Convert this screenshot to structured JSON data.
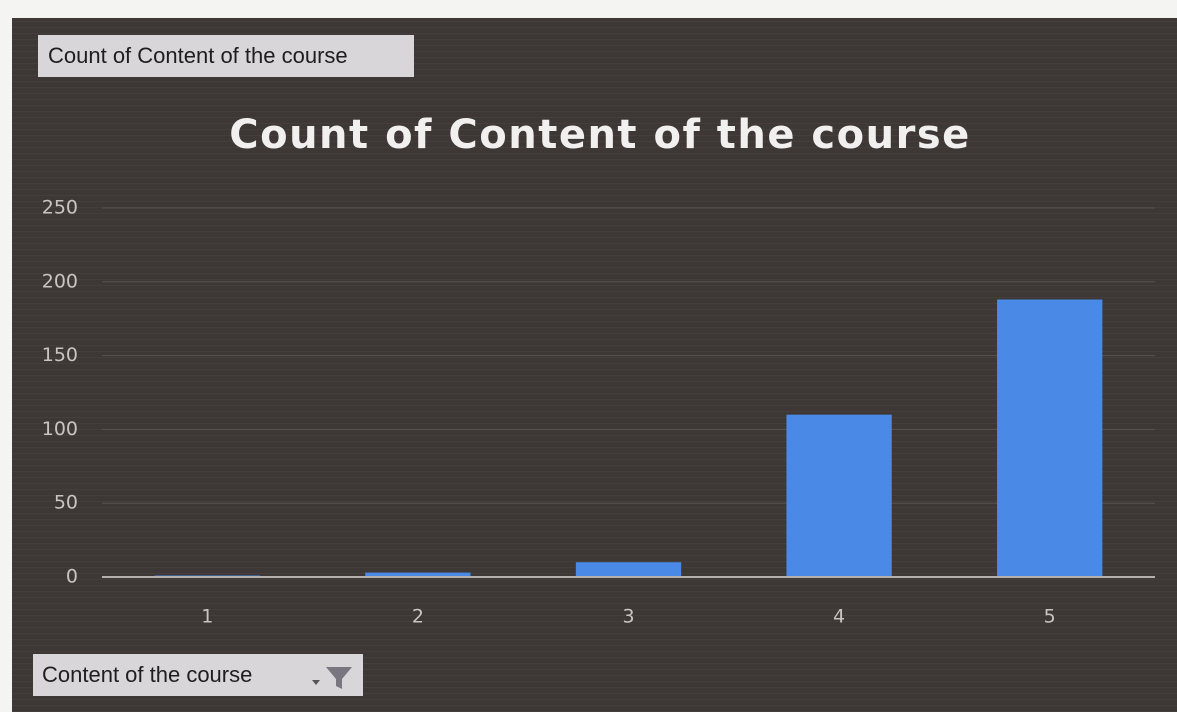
{
  "chart_data": {
    "type": "bar",
    "title": "Count of Content of the course",
    "value_field_button": "Count of Content of the course",
    "axis_field_button": "Content of the course",
    "categories": [
      "1",
      "2",
      "3",
      "4",
      "5"
    ],
    "values": [
      1,
      3,
      10,
      110,
      188
    ],
    "color": "#4a8ae6",
    "ylim": [
      0,
      250
    ],
    "yticks": [
      0,
      50,
      100,
      150,
      200,
      250
    ],
    "grid": true
  }
}
